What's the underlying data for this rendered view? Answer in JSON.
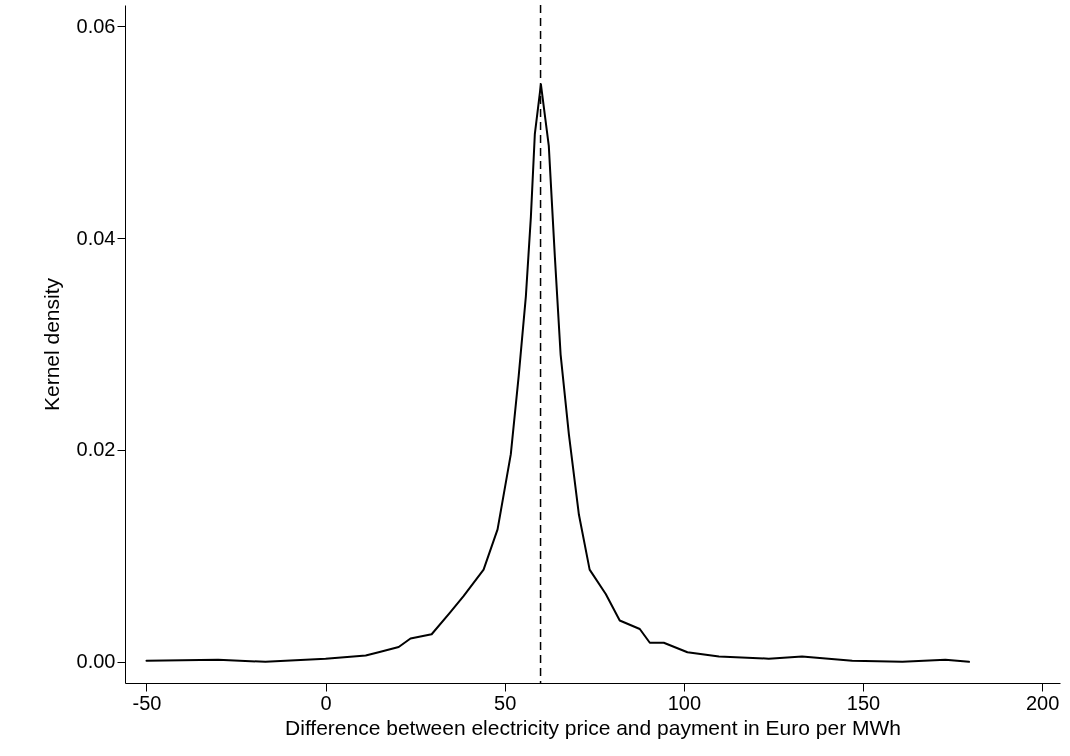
{
  "chart_data": {
    "type": "line",
    "xlabel": "Difference between electricity price and payment in Euro per MWh",
    "ylabel": "Kernel density",
    "x": [
      -50,
      -30,
      -16.8,
      0,
      11.2,
      14.8,
      20.4,
      23.7,
      29.6,
      34.6,
      38.5,
      44.1,
      48.0,
      51.7,
      53.9,
      55.9,
      57.3,
      58.4,
      60.1,
      62.3,
      64.0,
      65.6,
      67.9,
      70.7,
      73.7,
      78.2,
      82.1,
      87.7,
      90.5,
      94.4,
      101,
      109.8,
      123.7,
      133,
      147,
      161,
      173,
      179.6
    ],
    "series": [
      {
        "color": "#000000",
        "line_style": "solid",
        "values": [
          0.0001,
          0.0002,
          0,
          0.0003,
          0.0006,
          0.0009,
          0.0014,
          0.0022,
          0.0026,
          0.0046,
          0.0062,
          0.0087,
          0.0125,
          0.0196,
          0.027,
          0.0345,
          0.042,
          0.0498,
          0.0545,
          0.0487,
          0.0382,
          0.029,
          0.0215,
          0.0139,
          0.0087,
          0.0064,
          0.0039,
          0.0031,
          0.0018,
          0.0018,
          0.0009,
          0.0005,
          0.0003,
          0.0005,
          0.0001,
          0,
          0.0002,
          0
        ]
      }
    ],
    "xlim": [
      -56,
      205
    ],
    "ylim": [
      -0.002,
      0.062
    ],
    "xticks": [
      -50,
      0,
      50,
      100,
      150,
      200
    ],
    "yticks": [
      {
        "value": 0,
        "label": "0.00"
      },
      {
        "value": 0.02,
        "label": "0.02"
      },
      {
        "value": 0.04,
        "label": "0.04"
      },
      {
        "value": 0.06,
        "label": "0.06"
      }
    ],
    "ref_lines": [
      {
        "axis": "x",
        "value": 60,
        "color": "#000000",
        "line_style": "dashed"
      }
    ]
  }
}
